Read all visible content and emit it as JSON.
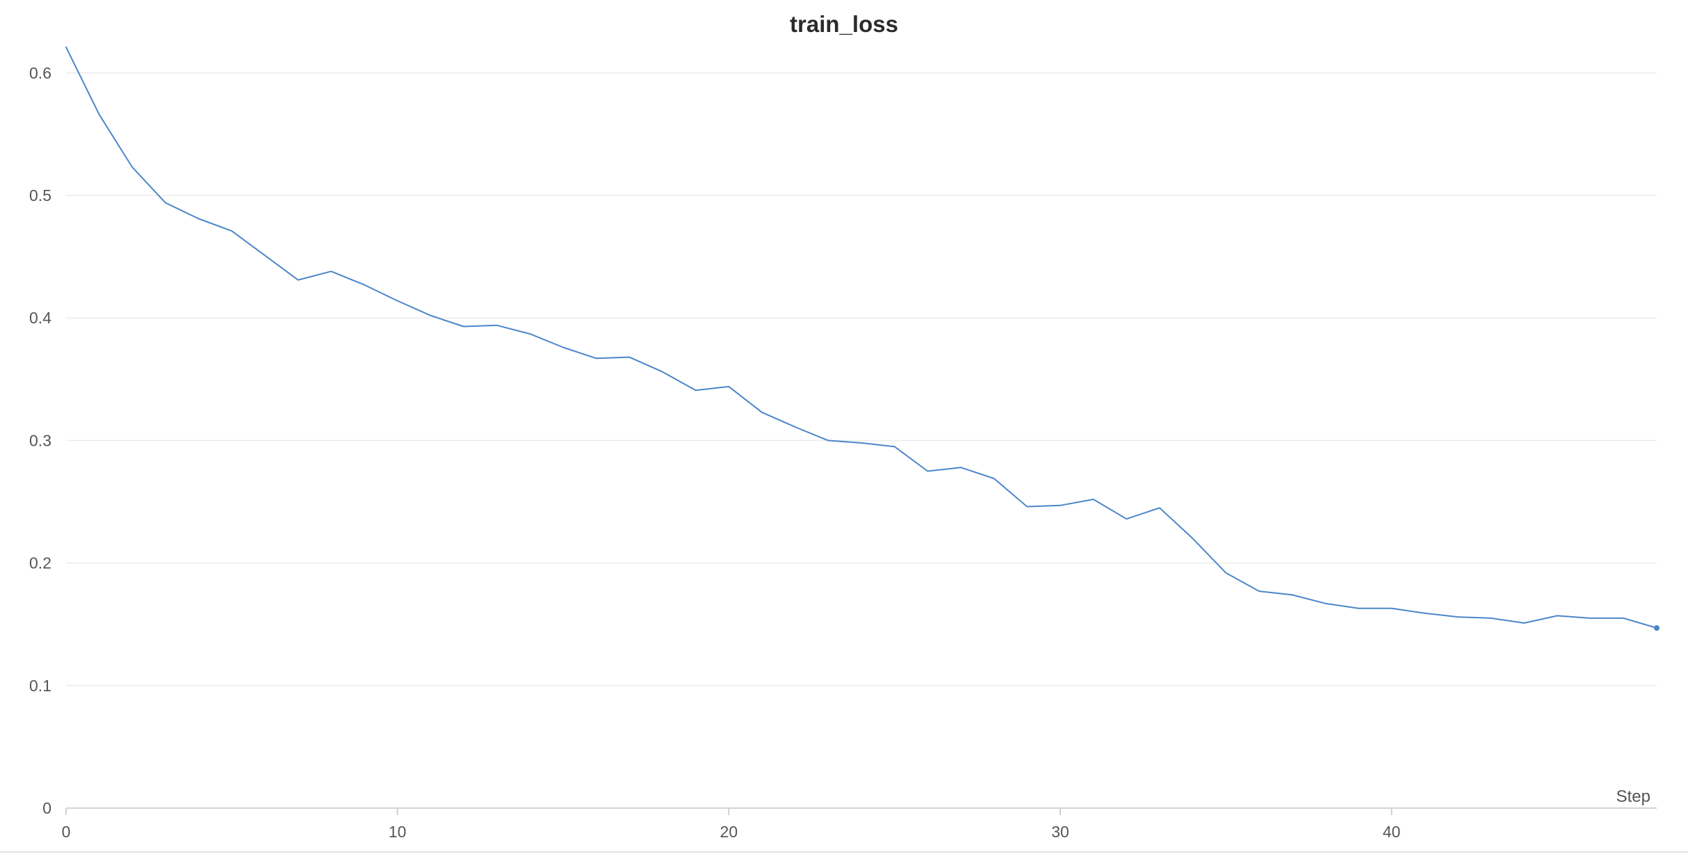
{
  "chart_data": {
    "type": "line",
    "title": "train_loss",
    "xlabel": "Step",
    "ylabel": "",
    "xlim": [
      0,
      48
    ],
    "ylim": [
      0,
      0.62
    ],
    "grid": true,
    "x_ticks": [
      "0",
      "10",
      "20",
      "30",
      "40"
    ],
    "y_ticks": [
      "0",
      "0.1",
      "0.2",
      "0.3",
      "0.4",
      "0.5",
      "0.6"
    ],
    "x_tick_values": [
      0,
      10,
      20,
      30,
      40
    ],
    "y_tick_values": [
      0,
      0.1,
      0.2,
      0.3,
      0.4,
      0.5,
      0.6
    ],
    "series": [
      {
        "color": "#4a86c8",
        "x": [
          0,
          1,
          2,
          3,
          4,
          5,
          6,
          7,
          8,
          9,
          10,
          11,
          12,
          13,
          14,
          15,
          16,
          17,
          18,
          19,
          20,
          21,
          22,
          23,
          24,
          25,
          26,
          27,
          28,
          29,
          30,
          31,
          32,
          33,
          34,
          35,
          36,
          37,
          38,
          39,
          40,
          41,
          42,
          43,
          44,
          45,
          46,
          47,
          48
        ],
        "values": [
          0.621,
          0.566,
          0.523,
          0.494,
          0.481,
          0.471,
          0.451,
          0.431,
          0.438,
          0.427,
          0.414,
          0.402,
          0.393,
          0.394,
          0.387,
          0.376,
          0.367,
          0.368,
          0.356,
          0.341,
          0.344,
          0.323,
          0.311,
          0.3,
          0.298,
          0.295,
          0.275,
          0.278,
          0.269,
          0.246,
          0.247,
          0.252,
          0.236,
          0.245,
          0.22,
          0.192,
          0.177,
          0.174,
          0.167,
          0.163,
          0.163,
          0.159,
          0.156,
          0.155,
          0.151,
          0.157,
          0.155,
          0.155,
          0.147
        ]
      }
    ]
  }
}
